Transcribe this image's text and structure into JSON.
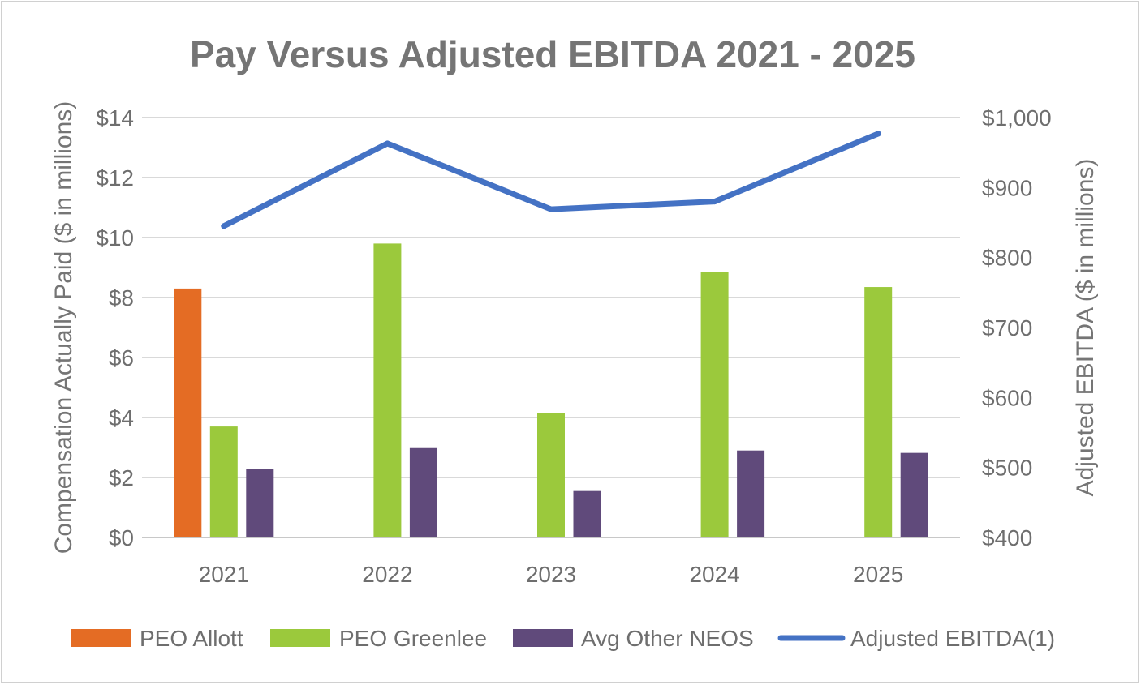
{
  "chart_data": {
    "type": "bar",
    "title": "Pay Versus Adjusted EBITDA 2021 - 2025",
    "categories": [
      "2021",
      "2022",
      "2023",
      "2024",
      "2025"
    ],
    "ylabel": "Compensation Actually Paid ($ in millions)",
    "ylabel_right": "Adjusted EBITDA ($ in millions)",
    "ylim": [
      0,
      14
    ],
    "ylim_right": [
      400,
      1000
    ],
    "y_ticks": [
      "$0",
      "$2",
      "$4",
      "$6",
      "$8",
      "$10",
      "$12",
      "$14"
    ],
    "y_ticks_right": [
      "$400",
      "$500",
      "$600",
      "$700",
      "$800",
      "$900",
      "$1,000"
    ],
    "grid": true,
    "legend_position": "bottom",
    "series": [
      {
        "name": "PEO Allott",
        "type": "bar",
        "axis": "left",
        "color": "#E46C24",
        "values": [
          8.3,
          null,
          null,
          null,
          null
        ]
      },
      {
        "name": "PEO Greenlee",
        "type": "bar",
        "axis": "left",
        "color": "#9BC93C",
        "values": [
          3.7,
          9.8,
          4.15,
          8.85,
          8.35
        ]
      },
      {
        "name": "Avg Other NEOS",
        "type": "bar",
        "axis": "left",
        "color": "#604A7B",
        "values": [
          2.28,
          2.98,
          1.55,
          2.9,
          2.82
        ]
      },
      {
        "name": "Adjusted EBITDA(1)",
        "type": "line",
        "axis": "right",
        "color": "#4472C4",
        "values": [
          845,
          963,
          869,
          880,
          977
        ]
      }
    ]
  }
}
